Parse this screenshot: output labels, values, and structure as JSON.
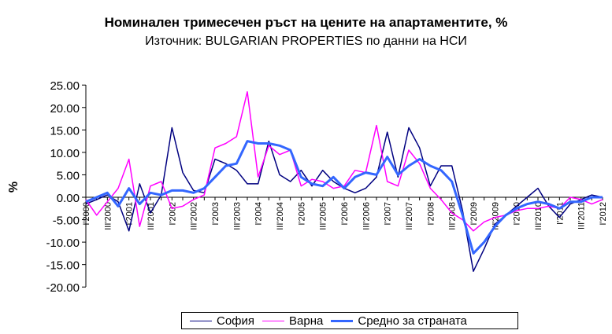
{
  "chart_data": {
    "type": "line",
    "title": "Номинален тримесечен ръст на цените на апартаментите, %",
    "subtitle": "Източник: BULGARIAN PROPERTIES по данни на НСИ",
    "ylabel": "%",
    "xlabel": "",
    "ylim": [
      -20,
      25
    ],
    "yticks": [
      25,
      20,
      15,
      10,
      5,
      0,
      -5,
      -10,
      -15,
      -20
    ],
    "ytick_labels": [
      "25.00",
      "20.00",
      "15.00",
      "10.00",
      "5.00",
      "0.00",
      "-5.00",
      "-10.00",
      "-15.00",
      "-20.00"
    ],
    "grid": false,
    "legend_position": "bottom",
    "x": [
      "I'2000",
      "II'2000",
      "III'2000",
      "IV'2000",
      "I'2001",
      "II'2001",
      "III'2001",
      "IV'2001",
      "I'2002",
      "II'2002",
      "III'2002",
      "IV'2002",
      "I'2003",
      "II'2003",
      "III'2003",
      "IV'2003",
      "I'2004",
      "II'2004",
      "III'2004",
      "IV'2004",
      "I'2005",
      "II'2005",
      "III'2005",
      "IV'2005",
      "I'2006",
      "II'2006",
      "III'2006",
      "IV'2006",
      "I'2007",
      "II'2007",
      "III'2007",
      "IV'2007",
      "I'2008",
      "II'2008",
      "III'2008",
      "IV'2008",
      "I'2009",
      "II'2009",
      "III'2009",
      "IV'2009",
      "I'2010",
      "II'2010",
      "III'2010",
      "IV'2010",
      "I'2011",
      "II'2011",
      "III'2011",
      "IV'2011",
      "I'2012"
    ],
    "xtick_labels": [
      "I'2000",
      "",
      "III'2000",
      "",
      "I'2001",
      "",
      "III'2001",
      "",
      "I'2002",
      "",
      "III'2002",
      "",
      "I'2003",
      "",
      "III'2003",
      "",
      "I'2004",
      "",
      "III'2004",
      "",
      "I'2005",
      "",
      "III'2005",
      "",
      "I'2006",
      "",
      "III'2006",
      "",
      "I'2007",
      "",
      "III'2007",
      "",
      "I'2008",
      "",
      "III'2008",
      "",
      "I'2009",
      "",
      "III'2009",
      "",
      "I'2010",
      "",
      "III'2010",
      "",
      "I'2011",
      "",
      "III'2011",
      "",
      "I'2012"
    ],
    "series": [
      {
        "name": "София",
        "color": "#000080",
        "stroke_width": 1.5,
        "values": [
          -1.5,
          -0.5,
          0.5,
          -1.0,
          -7.5,
          3.0,
          -3.5,
          0.5,
          15.5,
          5.5,
          1.5,
          1.0,
          8.5,
          7.5,
          6.0,
          3.0,
          3.0,
          12.5,
          5.0,
          3.5,
          6.0,
          2.5,
          6.0,
          3.5,
          2.0,
          1.0,
          2.0,
          4.5,
          14.5,
          4.5,
          15.5,
          11.0,
          2.5,
          7.0,
          7.0,
          -3.0,
          -16.5,
          -11.5,
          -6.0,
          -4.0,
          -2.0,
          0.0,
          2.0,
          -2.0,
          -4.5,
          -1.5,
          -0.5,
          0.5,
          0.0
        ]
      },
      {
        "name": "Варна",
        "color": "#ff00ff",
        "stroke_width": 1.5,
        "values": [
          -0.5,
          -4.0,
          -1.0,
          2.0,
          8.5,
          -6.5,
          2.5,
          3.5,
          -2.5,
          -2.0,
          -0.5,
          0.5,
          11.0,
          12.0,
          13.5,
          23.5,
          4.5,
          11.5,
          9.5,
          10.5,
          2.5,
          4.0,
          3.5,
          2.0,
          2.5,
          6.0,
          5.5,
          16.0,
          3.5,
          2.5,
          10.5,
          7.5,
          2.0,
          -0.5,
          -3.5,
          -5.0,
          -7.5,
          -5.5,
          -4.5,
          -4.0,
          -3.0,
          -2.5,
          -2.5,
          -2.0,
          -2.5,
          0.0,
          -0.5,
          -1.5,
          -0.5
        ]
      },
      {
        "name": "Средно за страната",
        "color": "#3366ff",
        "stroke_width": 3,
        "values": [
          -1.0,
          0.0,
          1.0,
          -2.0,
          2.0,
          -1.5,
          1.0,
          0.5,
          1.5,
          1.5,
          1.0,
          2.0,
          4.5,
          7.0,
          7.5,
          12.5,
          12.0,
          12.0,
          11.5,
          10.5,
          4.5,
          3.0,
          2.5,
          4.5,
          2.0,
          4.5,
          5.5,
          5.0,
          9.0,
          5.0,
          7.0,
          8.5,
          7.0,
          6.0,
          3.5,
          -4.0,
          -12.5,
          -10.0,
          -6.5,
          -4.0,
          -2.5,
          -1.5,
          -1.0,
          -1.5,
          -2.5,
          -1.0,
          -1.0,
          0.0,
          0.0
        ]
      }
    ]
  }
}
